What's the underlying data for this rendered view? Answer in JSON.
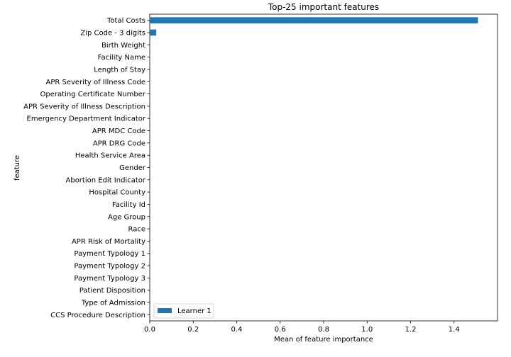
{
  "chart_data": {
    "type": "bar",
    "orientation": "horizontal",
    "title": "Top-25 important features",
    "xlabel": "Mean of feature importance",
    "ylabel": "feature",
    "xlim": [
      0,
      1.6
    ],
    "xticks": [
      0.0,
      0.2,
      0.4,
      0.6,
      0.8,
      1.0,
      1.2,
      1.4
    ],
    "xtick_labels": [
      "0.0",
      "0.2",
      "0.4",
      "0.6",
      "0.8",
      "1.0",
      "1.2",
      "1.4"
    ],
    "grid": false,
    "legend_position": "lower-left",
    "categories": [
      "Total Costs",
      "Zip Code - 3 digits",
      "Birth Weight",
      "Facility Name",
      "Length of Stay",
      "APR Severity of Illness Code",
      "Operating Certificate Number",
      "APR Severity of Illness Description",
      "Emergency Department Indicator",
      "APR MDC Code",
      "APR DRG Code",
      "Health Service Area",
      "Gender",
      "Abortion Edit Indicator",
      "Hospital County",
      "Facility Id",
      "Age Group",
      "Race",
      "APR Risk of Mortality",
      "Payment Typology 1",
      "Payment Typology 2",
      "Payment Typology 3",
      "Patient Disposition",
      "Type of Admission",
      "CCS Procedure Description"
    ],
    "series": [
      {
        "name": "Learner 1",
        "color": "#1f77b4",
        "values": [
          1.51,
          0.03,
          0.002,
          0.001,
          0.001,
          0.001,
          0.001,
          0.001,
          0.001,
          0.001,
          0.001,
          0.001,
          0.001,
          0.001,
          0.001,
          0.001,
          0.0,
          0.0,
          0.0,
          0.0,
          0.0,
          0.0,
          0.0,
          0.0,
          0.0
        ]
      }
    ]
  }
}
